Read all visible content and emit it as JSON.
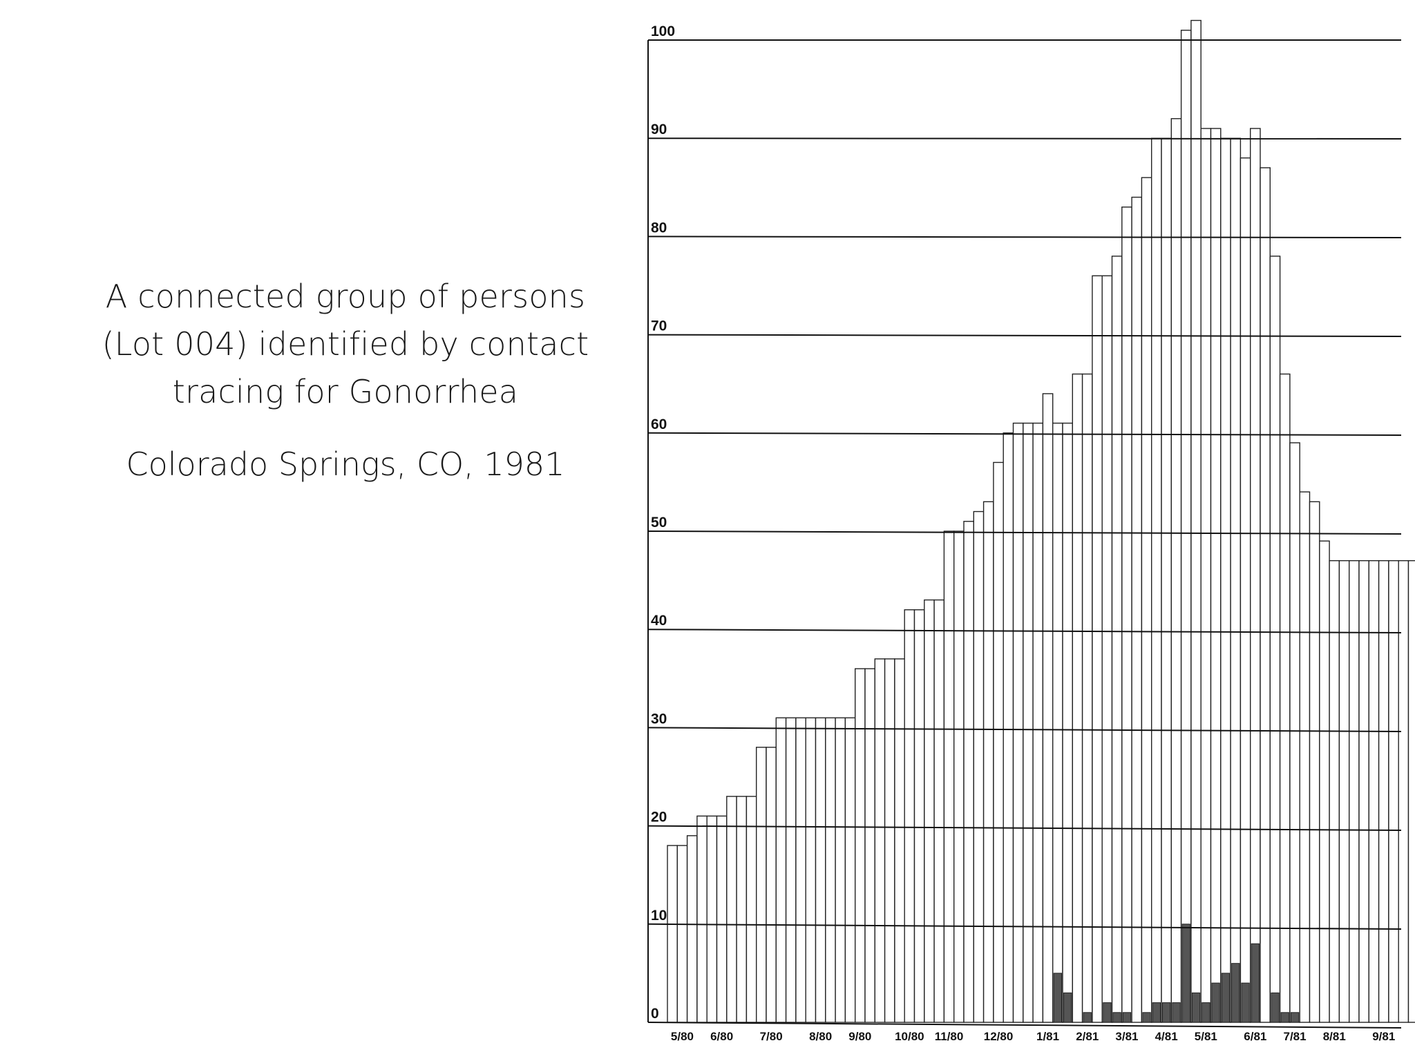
{
  "caption": {
    "line1": "A connected group of persons",
    "line2": "(Lot 004) identified by contact",
    "line3": "tracing for Gonorrhea",
    "location": "Colorado Springs, CO,  1981"
  },
  "chart_data": {
    "type": "bar",
    "ylim": [
      0,
      100
    ],
    "yticks": [
      0,
      10,
      20,
      30,
      40,
      50,
      60,
      70,
      80,
      90,
      100
    ],
    "grid": true,
    "x_tick_labels": [
      "5/80",
      "6/80",
      "7/80",
      "8/80",
      "9/80",
      "10/80",
      "11/80",
      "12/80",
      "1/81",
      "2/81",
      "3/81",
      "4/81",
      "5/81",
      "6/81",
      "7/81",
      "8/81",
      "9/81"
    ],
    "x_tick_positions": [
      1,
      5,
      10,
      15,
      19,
      24,
      28,
      33,
      38,
      42,
      46,
      50,
      54,
      59,
      63,
      67,
      72
    ],
    "colors": {
      "bar_outline": "#222222",
      "filled": "#555555",
      "grid": "#111111"
    },
    "series": [
      {
        "values": [
          18,
          18,
          19,
          21,
          21,
          21,
          23,
          23,
          23,
          28,
          28,
          31,
          31,
          31,
          31,
          31,
          31,
          31,
          31,
          36,
          36,
          37,
          37,
          37,
          42,
          42,
          43,
          43,
          50,
          50,
          51,
          52,
          53,
          57,
          60,
          61,
          61,
          61,
          64,
          61,
          61,
          66,
          66,
          76,
          76,
          78,
          83,
          84,
          86,
          90,
          90,
          92,
          101,
          102,
          91,
          91,
          90,
          90,
          88,
          91,
          87,
          78,
          66,
          59,
          54,
          53,
          49,
          47,
          47,
          47,
          47,
          47,
          47,
          47,
          47,
          47
        ]
      },
      {
        "values": [
          0,
          0,
          0,
          0,
          0,
          0,
          0,
          0,
          0,
          0,
          0,
          0,
          0,
          0,
          0,
          0,
          0,
          0,
          0,
          0,
          0,
          0,
          0,
          0,
          0,
          0,
          0,
          0,
          0,
          0,
          0,
          0,
          0,
          0,
          0,
          0,
          0,
          0,
          0,
          5,
          3,
          0,
          1,
          0,
          2,
          1,
          1,
          0,
          1,
          2,
          2,
          2,
          10,
          3,
          2,
          4,
          5,
          6,
          4,
          8,
          0,
          3,
          1,
          1,
          0,
          0,
          0,
          0,
          0,
          0,
          0,
          0,
          0,
          0,
          0,
          0
        ]
      }
    ]
  }
}
